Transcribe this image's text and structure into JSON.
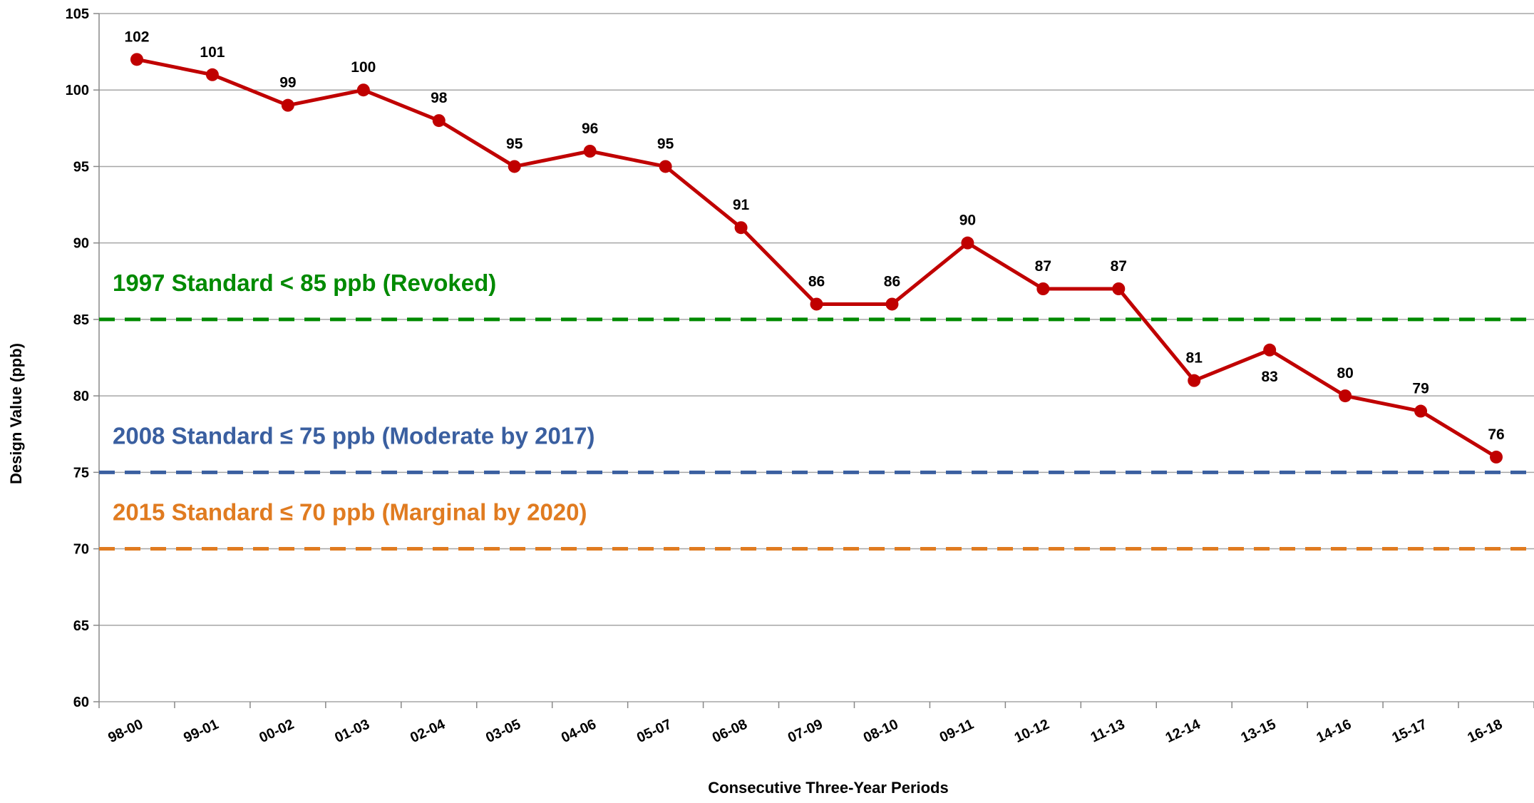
{
  "chart_data": {
    "type": "line",
    "x_label": "Consecutive Three-Year Periods",
    "y_label": "Design Value (ppb)",
    "categories": [
      "98-00",
      "99-01",
      "00-02",
      "01-03",
      "02-04",
      "03-05",
      "04-06",
      "05-07",
      "06-08",
      "07-09",
      "08-10",
      "09-11",
      "10-12",
      "11-13",
      "12-14",
      "13-15",
      "14-16",
      "15-17",
      "16-18"
    ],
    "series": [
      {
        "color": "#c00000",
        "values": [
          102,
          101,
          99,
          100,
          98,
          95,
          96,
          95,
          91,
          86,
          86,
          90,
          87,
          87,
          81,
          83,
          80,
          79,
          76
        ]
      }
    ],
    "reference_lines": [
      {
        "value": 85,
        "label": "1997 Standard < 85 ppb (Revoked)",
        "color": "#008a00"
      },
      {
        "value": 75,
        "label": "2008 Standard ≤ 75 ppb (Moderate by 2017)",
        "color": "#3a5fa0"
      },
      {
        "value": 70,
        "label": "2015 Standard ≤ 70 ppb (Marginal by 2020)",
        "color": "#e07b20"
      }
    ],
    "ylim": [
      60,
      105
    ],
    "yticks": [
      60,
      65,
      70,
      75,
      80,
      85,
      90,
      95,
      100,
      105
    ],
    "grid": true
  }
}
